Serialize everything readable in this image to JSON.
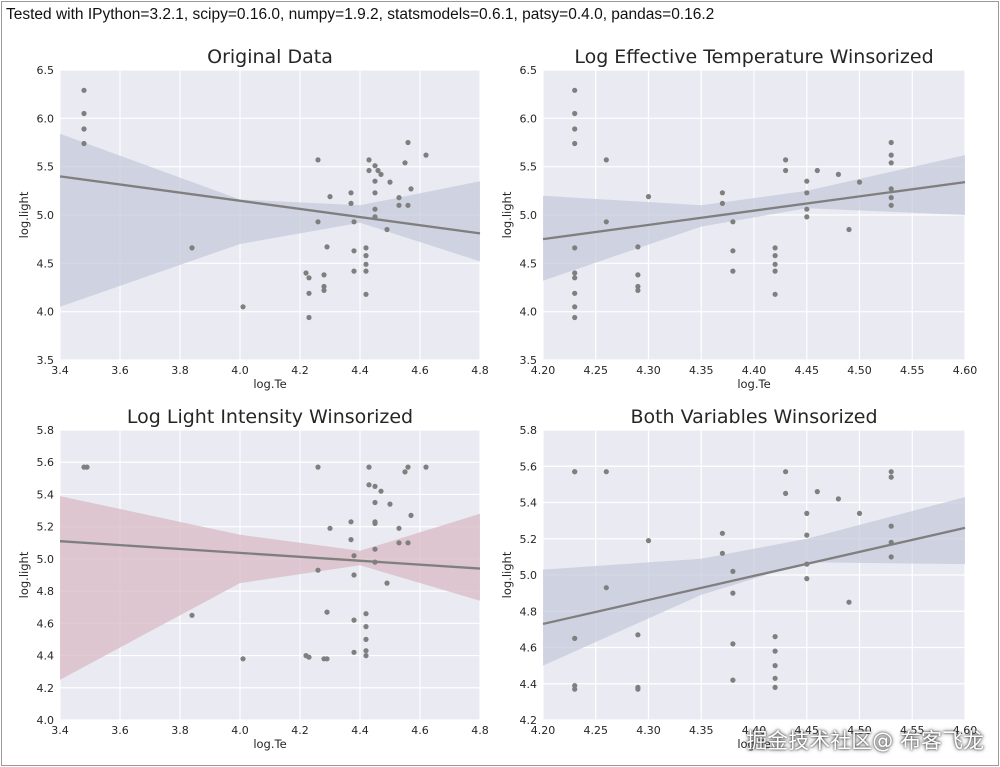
{
  "header": {
    "text": "Tested with IPython=3.2.1, scipy=0.16.0, numpy=1.9.2, statsmodels=0.6.1, patsy=0.4.0, pandas=0.16.2"
  },
  "watermark": "掘金技术社区@ 布客飞龙",
  "colors": {
    "plot_background": "#eaeaf2",
    "grid": "#ffffff",
    "point": "#7f7f7f",
    "line": "#7f7f7f",
    "band_blue": "#c5cbdb",
    "band_red": "#d8b9c4"
  },
  "chart_data": [
    {
      "type": "scatter",
      "title": "Original Data",
      "xlabel": "log.Te",
      "ylabel": "log.light",
      "xlim": [
        3.4,
        4.8
      ],
      "ylim": [
        3.5,
        6.5
      ],
      "xticks": [
        "3.4",
        "3.6",
        "3.8",
        "4.0",
        "4.2",
        "4.4",
        "4.6",
        "4.8"
      ],
      "yticks": [
        "3.5",
        "4.0",
        "4.5",
        "5.0",
        "5.5",
        "6.0",
        "6.5"
      ],
      "band_color": "blue",
      "regression": {
        "x": [
          3.4,
          4.8
        ],
        "y": [
          5.4,
          4.81
        ]
      },
      "ci_band": {
        "x": [
          3.4,
          4.0,
          4.4,
          4.8
        ],
        "lower": [
          4.05,
          4.7,
          4.92,
          4.52
        ],
        "upper": [
          5.84,
          5.16,
          5.1,
          5.35
        ]
      },
      "points": [
        [
          3.48,
          6.29
        ],
        [
          3.48,
          6.05
        ],
        [
          3.48,
          5.89
        ],
        [
          3.48,
          5.74
        ],
        [
          3.84,
          4.66
        ],
        [
          4.01,
          4.05
        ],
        [
          4.22,
          4.4
        ],
        [
          4.23,
          4.35
        ],
        [
          4.23,
          4.19
        ],
        [
          4.23,
          3.94
        ],
        [
          4.26,
          5.57
        ],
        [
          4.26,
          4.93
        ],
        [
          4.28,
          4.38
        ],
        [
          4.28,
          4.26
        ],
        [
          4.28,
          4.22
        ],
        [
          4.29,
          4.67
        ],
        [
          4.3,
          5.19
        ],
        [
          4.37,
          5.23
        ],
        [
          4.37,
          5.12
        ],
        [
          4.38,
          4.93
        ],
        [
          4.38,
          4.63
        ],
        [
          4.38,
          4.42
        ],
        [
          4.42,
          4.66
        ],
        [
          4.42,
          4.58
        ],
        [
          4.42,
          4.49
        ],
        [
          4.42,
          4.42
        ],
        [
          4.42,
          4.18
        ],
        [
          4.43,
          5.57
        ],
        [
          4.43,
          5.46
        ],
        [
          4.45,
          5.51
        ],
        [
          4.45,
          5.35
        ],
        [
          4.45,
          5.23
        ],
        [
          4.45,
          5.06
        ],
        [
          4.45,
          4.98
        ],
        [
          4.46,
          5.46
        ],
        [
          4.47,
          5.42
        ],
        [
          4.49,
          4.85
        ],
        [
          4.5,
          5.34
        ],
        [
          4.53,
          5.18
        ],
        [
          4.53,
          5.1
        ],
        [
          4.55,
          5.54
        ],
        [
          4.56,
          5.75
        ],
        [
          4.56,
          5.1
        ],
        [
          4.57,
          5.27
        ],
        [
          4.62,
          5.62
        ]
      ]
    },
    {
      "type": "scatter",
      "title": "Log Effective Temperature Winsorized",
      "xlabel": "log.Te",
      "ylabel": "log.light",
      "xlim": [
        4.2,
        4.6
      ],
      "ylim": [
        3.5,
        6.5
      ],
      "xticks": [
        "4.20",
        "4.25",
        "4.30",
        "4.35",
        "4.40",
        "4.45",
        "4.50",
        "4.55",
        "4.60"
      ],
      "yticks": [
        "3.5",
        "4.0",
        "4.5",
        "5.0",
        "5.5",
        "6.0",
        "6.5"
      ],
      "band_color": "blue",
      "regression": {
        "x": [
          4.2,
          4.6
        ],
        "y": [
          4.75,
          5.34
        ]
      },
      "ci_band": {
        "x": [
          4.2,
          4.35,
          4.45,
          4.6
        ],
        "lower": [
          4.32,
          4.88,
          5.07,
          5.0
        ],
        "upper": [
          5.2,
          5.1,
          5.25,
          5.62
        ]
      },
      "points": [
        [
          4.23,
          6.29
        ],
        [
          4.23,
          6.05
        ],
        [
          4.23,
          5.89
        ],
        [
          4.23,
          5.74
        ],
        [
          4.23,
          4.66
        ],
        [
          4.23,
          4.4
        ],
        [
          4.23,
          4.35
        ],
        [
          4.23,
          4.19
        ],
        [
          4.23,
          4.05
        ],
        [
          4.23,
          3.94
        ],
        [
          4.26,
          5.57
        ],
        [
          4.26,
          4.93
        ],
        [
          4.29,
          4.38
        ],
        [
          4.29,
          4.26
        ],
        [
          4.29,
          4.22
        ],
        [
          4.29,
          4.67
        ],
        [
          4.3,
          5.19
        ],
        [
          4.37,
          5.23
        ],
        [
          4.37,
          5.12
        ],
        [
          4.38,
          4.93
        ],
        [
          4.38,
          4.63
        ],
        [
          4.38,
          4.42
        ],
        [
          4.42,
          4.66
        ],
        [
          4.42,
          4.58
        ],
        [
          4.42,
          4.49
        ],
        [
          4.42,
          4.42
        ],
        [
          4.42,
          4.18
        ],
        [
          4.43,
          5.57
        ],
        [
          4.43,
          5.46
        ],
        [
          4.45,
          5.35
        ],
        [
          4.45,
          5.23
        ],
        [
          4.45,
          5.06
        ],
        [
          4.45,
          4.98
        ],
        [
          4.46,
          5.46
        ],
        [
          4.48,
          5.42
        ],
        [
          4.49,
          4.85
        ],
        [
          4.5,
          5.34
        ],
        [
          4.53,
          5.75
        ],
        [
          4.53,
          5.62
        ],
        [
          4.53,
          5.54
        ],
        [
          4.53,
          5.27
        ],
        [
          4.53,
          5.18
        ],
        [
          4.53,
          5.1
        ]
      ]
    },
    {
      "type": "scatter",
      "title": "Log Light Intensity Winsorized",
      "xlabel": "log.Te",
      "ylabel": "log.light",
      "xlim": [
        3.4,
        4.8
      ],
      "ylim": [
        4.0,
        5.8
      ],
      "xticks": [
        "3.4",
        "3.6",
        "3.8",
        "4.0",
        "4.2",
        "4.4",
        "4.6",
        "4.8"
      ],
      "yticks": [
        "4.0",
        "4.2",
        "4.4",
        "4.6",
        "4.8",
        "5.0",
        "5.2",
        "5.4",
        "5.6",
        "5.8"
      ],
      "band_color": "red",
      "regression": {
        "x": [
          3.4,
          4.8
        ],
        "y": [
          5.11,
          4.94
        ]
      },
      "ci_band": {
        "x": [
          3.4,
          4.0,
          4.4,
          4.8
        ],
        "lower": [
          4.25,
          4.85,
          4.96,
          4.74
        ],
        "upper": [
          5.39,
          5.15,
          5.05,
          5.28
        ]
      },
      "points": [
        [
          3.48,
          5.57
        ],
        [
          3.49,
          5.57
        ],
        [
          3.84,
          4.65
        ],
        [
          4.01,
          4.38
        ],
        [
          4.22,
          4.4
        ],
        [
          4.23,
          4.39
        ],
        [
          4.26,
          5.57
        ],
        [
          4.26,
          4.93
        ],
        [
          4.28,
          4.38
        ],
        [
          4.29,
          4.38
        ],
        [
          4.29,
          4.67
        ],
        [
          4.3,
          5.19
        ],
        [
          4.37,
          5.23
        ],
        [
          4.37,
          5.12
        ],
        [
          4.38,
          5.02
        ],
        [
          4.38,
          4.9
        ],
        [
          4.38,
          4.62
        ],
        [
          4.38,
          4.42
        ],
        [
          4.42,
          4.66
        ],
        [
          4.42,
          4.58
        ],
        [
          4.42,
          4.5
        ],
        [
          4.42,
          4.43
        ],
        [
          4.42,
          4.4
        ],
        [
          4.43,
          5.57
        ],
        [
          4.43,
          5.46
        ],
        [
          4.45,
          5.45
        ],
        [
          4.45,
          5.35
        ],
        [
          4.45,
          5.23
        ],
        [
          4.45,
          5.22
        ],
        [
          4.45,
          5.06
        ],
        [
          4.45,
          4.98
        ],
        [
          4.47,
          5.42
        ],
        [
          4.49,
          4.85
        ],
        [
          4.5,
          5.34
        ],
        [
          4.53,
          5.19
        ],
        [
          4.53,
          5.1
        ],
        [
          4.55,
          5.54
        ],
        [
          4.56,
          5.57
        ],
        [
          4.56,
          5.1
        ],
        [
          4.57,
          5.27
        ],
        [
          4.62,
          5.57
        ]
      ]
    },
    {
      "type": "scatter",
      "title": "Both Variables Winsorized",
      "xlabel": "log.Te",
      "ylabel": "log.light",
      "xlim": [
        4.2,
        4.6
      ],
      "ylim": [
        4.2,
        5.8
      ],
      "xticks": [
        "4.20",
        "4.25",
        "4.30",
        "4.35",
        "4.40",
        "4.45",
        "4.50",
        "4.55",
        "4.60"
      ],
      "yticks": [
        "4.2",
        "4.4",
        "4.6",
        "4.8",
        "5.0",
        "5.2",
        "5.4",
        "5.6",
        "5.8"
      ],
      "band_color": "blue",
      "regression": {
        "x": [
          4.2,
          4.6
        ],
        "y": [
          4.73,
          5.26
        ]
      },
      "ci_band": {
        "x": [
          4.2,
          4.35,
          4.45,
          4.6
        ],
        "lower": [
          4.5,
          4.89,
          5.07,
          5.06
        ],
        "upper": [
          5.03,
          5.09,
          5.2,
          5.43
        ]
      },
      "points": [
        [
          4.23,
          5.57
        ],
        [
          4.23,
          5.57
        ],
        [
          4.23,
          4.65
        ],
        [
          4.23,
          4.39
        ],
        [
          4.23,
          4.37
        ],
        [
          4.26,
          5.57
        ],
        [
          4.26,
          4.93
        ],
        [
          4.29,
          4.38
        ],
        [
          4.29,
          4.37
        ],
        [
          4.29,
          4.67
        ],
        [
          4.3,
          5.19
        ],
        [
          4.37,
          5.23
        ],
        [
          4.37,
          5.12
        ],
        [
          4.38,
          5.02
        ],
        [
          4.38,
          4.9
        ],
        [
          4.38,
          4.62
        ],
        [
          4.38,
          4.42
        ],
        [
          4.42,
          4.66
        ],
        [
          4.42,
          4.58
        ],
        [
          4.42,
          4.5
        ],
        [
          4.42,
          4.43
        ],
        [
          4.42,
          4.38
        ],
        [
          4.43,
          5.57
        ],
        [
          4.43,
          5.45
        ],
        [
          4.45,
          5.34
        ],
        [
          4.45,
          5.22
        ],
        [
          4.45,
          5.06
        ],
        [
          4.45,
          4.98
        ],
        [
          4.46,
          5.46
        ],
        [
          4.48,
          5.42
        ],
        [
          4.49,
          4.85
        ],
        [
          4.5,
          5.34
        ],
        [
          4.53,
          5.57
        ],
        [
          4.53,
          5.54
        ],
        [
          4.53,
          5.27
        ],
        [
          4.53,
          5.18
        ],
        [
          4.53,
          5.1
        ]
      ]
    }
  ]
}
